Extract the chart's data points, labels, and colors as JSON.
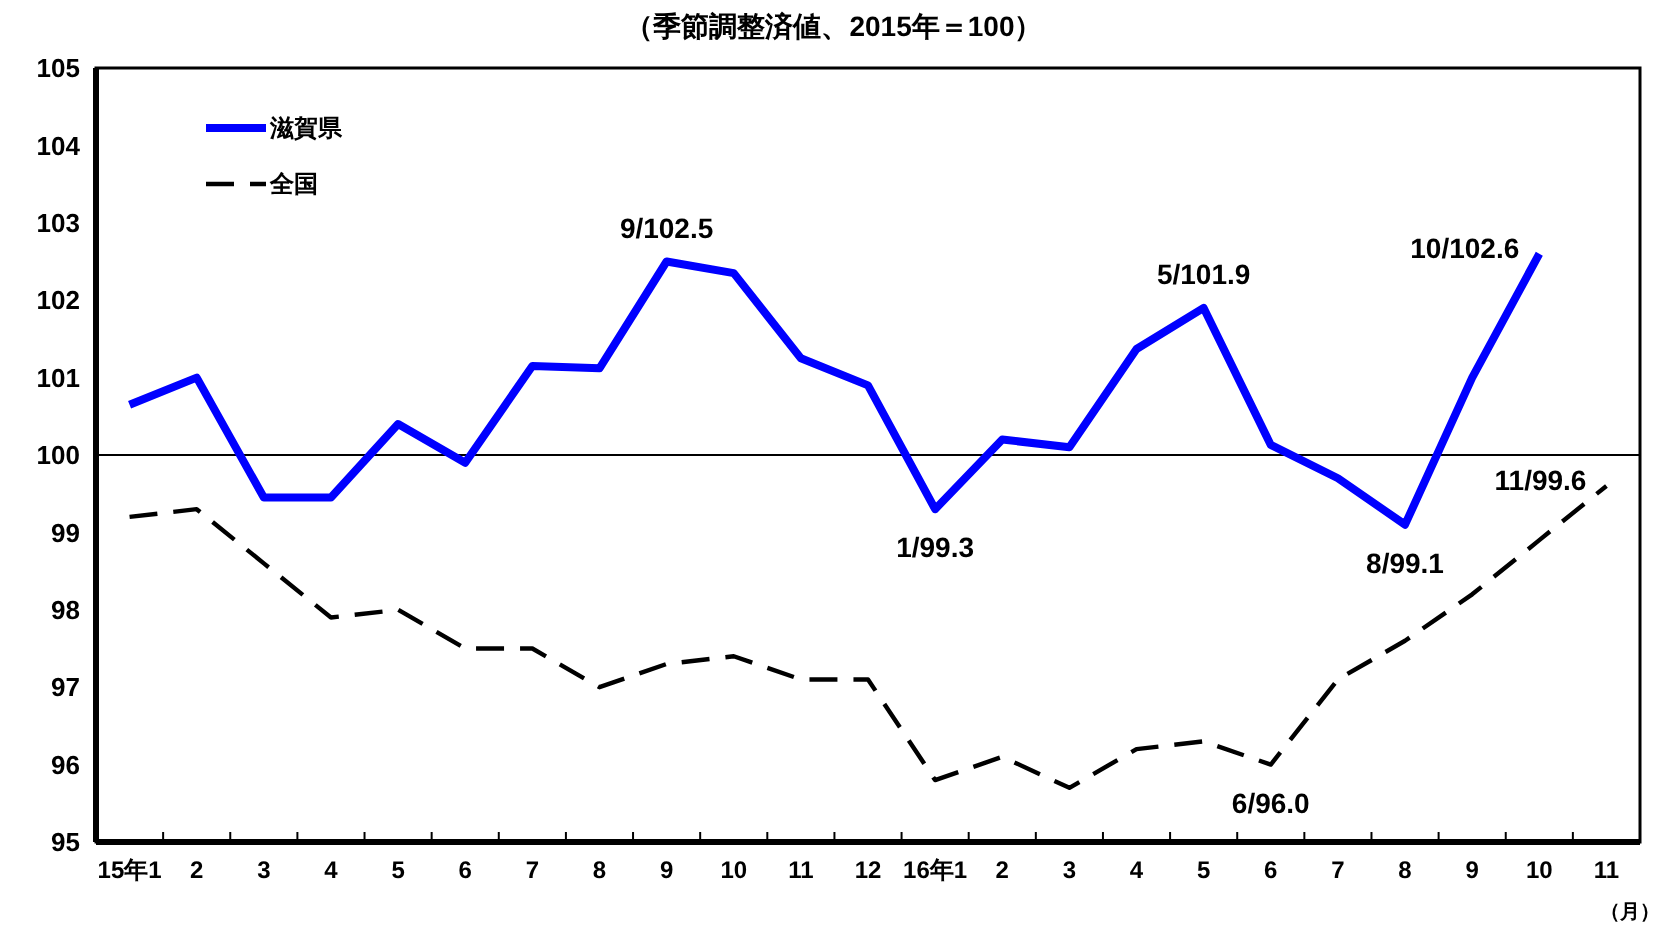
{
  "chart_data": {
    "type": "line",
    "title": "（季節調整済値、2015年＝100）",
    "xlabel": "（月）",
    "categories": [
      "15年1",
      "2",
      "3",
      "4",
      "5",
      "6",
      "7",
      "8",
      "9",
      "10",
      "11",
      "12",
      "16年1",
      "2",
      "3",
      "4",
      "5",
      "6",
      "7",
      "8",
      "9",
      "10",
      "11"
    ],
    "series": [
      {
        "name": "滋賀県",
        "color": "#0000ff",
        "line_style": "solid",
        "values": [
          100.65,
          101.0,
          99.45,
          99.45,
          100.4,
          99.9,
          101.15,
          101.12,
          102.5,
          102.35,
          101.25,
          100.9,
          99.3,
          100.2,
          100.1,
          101.37,
          101.9,
          100.13,
          99.7,
          99.1,
          101.0,
          102.6,
          null
        ],
        "value_labels": [
          null,
          null,
          null,
          null,
          null,
          null,
          null,
          null,
          "9/102.5",
          null,
          null,
          null,
          "1/99.3",
          null,
          null,
          null,
          "5/101.9",
          null,
          null,
          "8/99.1",
          null,
          "10/102.6",
          null
        ]
      },
      {
        "name": "全国",
        "color": "#000000",
        "line_style": "dashed",
        "values": [
          99.2,
          99.3,
          98.6,
          97.9,
          98.0,
          97.5,
          97.5,
          97.0,
          97.3,
          97.4,
          97.1,
          97.1,
          95.8,
          96.1,
          95.7,
          96.2,
          96.3,
          96.0,
          97.1,
          97.6,
          98.2,
          98.9,
          99.6
        ],
        "value_labels": [
          null,
          null,
          null,
          null,
          null,
          null,
          null,
          null,
          null,
          null,
          null,
          null,
          null,
          null,
          null,
          null,
          null,
          "6/96.0",
          null,
          null,
          null,
          null,
          "11/99.6"
        ]
      }
    ],
    "ylim": [
      95,
      105
    ],
    "yticks": [
      95,
      96,
      97,
      98,
      99,
      100,
      101,
      102,
      103,
      104,
      105
    ],
    "ref_lines": [
      {
        "axis": "y",
        "value": 100,
        "color": "#000000"
      }
    ],
    "legend": "top left",
    "grid": false,
    "marker": "none"
  }
}
